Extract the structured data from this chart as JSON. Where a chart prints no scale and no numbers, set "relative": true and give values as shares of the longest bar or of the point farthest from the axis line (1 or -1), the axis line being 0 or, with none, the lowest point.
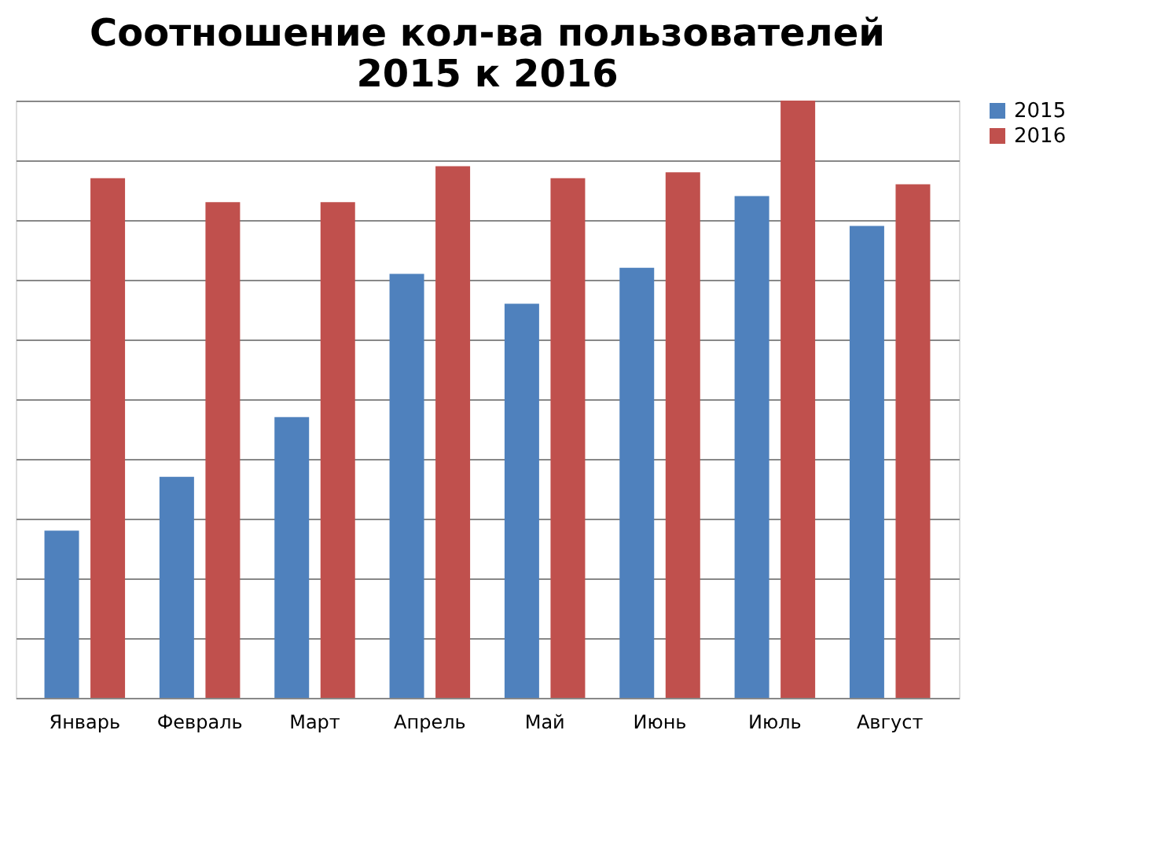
{
  "chart_data": {
    "type": "bar",
    "title": "Соотношение кол-ва пользователей\n2015 к 2016",
    "categories": [
      "Январь",
      "Февраль",
      "Март",
      "Апрель",
      "Май",
      "Июнь",
      "Июль",
      "Август"
    ],
    "relative": true,
    "grid": "y",
    "legend": "right",
    "series": [
      {
        "name": "2015",
        "color": "#4f81bd",
        "values": [
          0.28,
          0.37,
          0.47,
          0.71,
          0.66,
          0.72,
          0.84,
          0.79
        ]
      },
      {
        "name": "2016",
        "color": "#c0504d",
        "values": [
          0.87,
          0.83,
          0.83,
          0.89,
          0.87,
          0.88,
          1,
          0.86
        ]
      }
    ]
  }
}
